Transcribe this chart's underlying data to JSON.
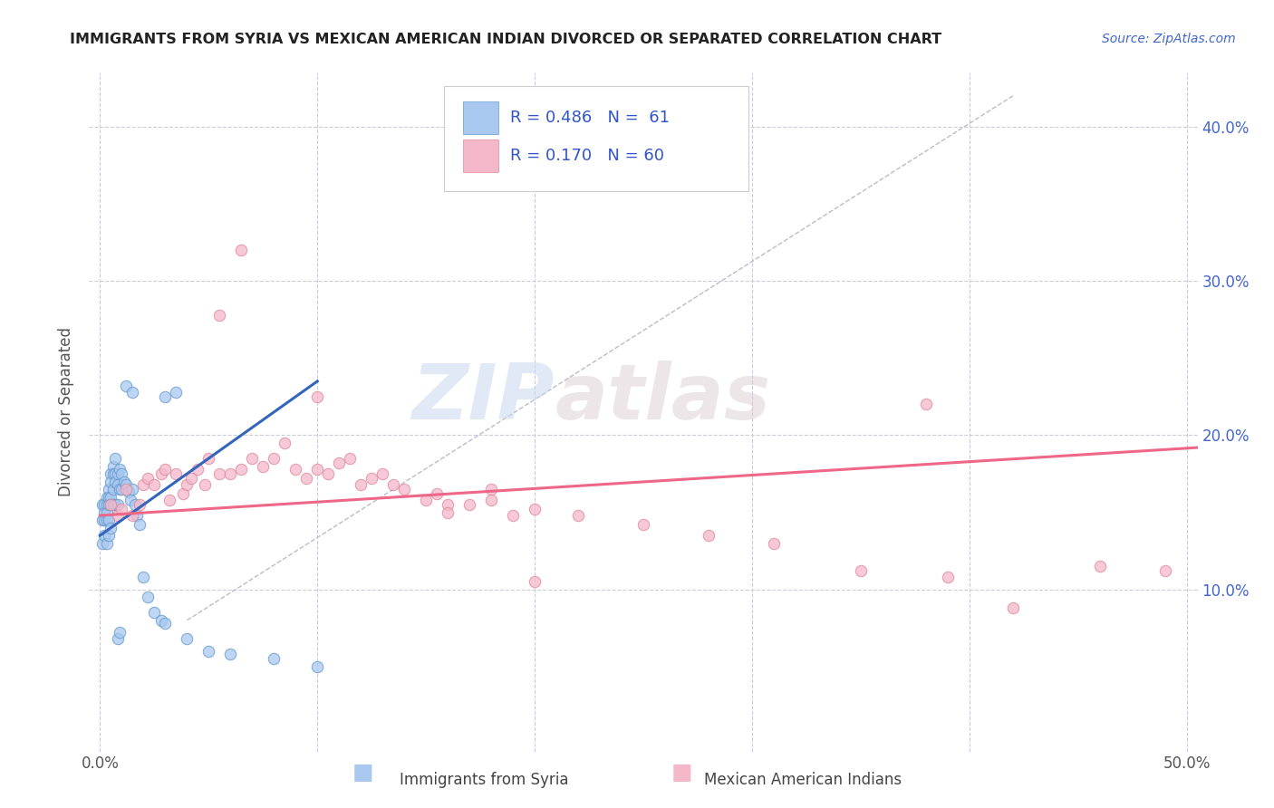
{
  "title": "IMMIGRANTS FROM SYRIA VS MEXICAN AMERICAN INDIAN DIVORCED OR SEPARATED CORRELATION CHART",
  "source": "Source: ZipAtlas.com",
  "ylabel": "Divorced or Separated",
  "watermark_zip": "ZIP",
  "watermark_atlas": "atlas",
  "xlim": [
    -0.005,
    0.505
  ],
  "ylim": [
    -0.005,
    0.435
  ],
  "x_ticks": [
    0.0,
    0.1,
    0.2,
    0.3,
    0.4,
    0.5
  ],
  "x_tick_labels": [
    "0.0%",
    "",
    "",
    "",
    "",
    "50.0%"
  ],
  "y_ticks_right": [
    0.1,
    0.2,
    0.3,
    0.4
  ],
  "y_tick_labels_right": [
    "10.0%",
    "20.0%",
    "30.0%",
    "40.0%"
  ],
  "legend_r1": "R = 0.486",
  "legend_n1": "N =  61",
  "legend_r2": "R = 0.170",
  "legend_n2": "N = 60",
  "legend_label1": "Immigrants from Syria",
  "legend_label2": "Mexican American Indians",
  "color_blue": "#a8c8f0",
  "color_blue_edge": "#6699cc",
  "color_pink": "#f5b8cb",
  "color_pink_edge": "#e08898",
  "color_blue_line": "#3366bb",
  "color_pink_line": "#ee6688",
  "color_legend_text": "#3355cc",
  "color_right_axis": "#4466cc",
  "background_color": "#ffffff",
  "grid_color": "#ccccdd",
  "blue_scatter_x": [
    0.001,
    0.001,
    0.001,
    0.002,
    0.002,
    0.002,
    0.002,
    0.003,
    0.003,
    0.003,
    0.003,
    0.003,
    0.004,
    0.004,
    0.004,
    0.004,
    0.004,
    0.005,
    0.005,
    0.005,
    0.005,
    0.005,
    0.006,
    0.006,
    0.006,
    0.006,
    0.007,
    0.007,
    0.007,
    0.007,
    0.008,
    0.008,
    0.008,
    0.009,
    0.009,
    0.01,
    0.01,
    0.011,
    0.012,
    0.013,
    0.014,
    0.015,
    0.016,
    0.017,
    0.018,
    0.02,
    0.022,
    0.025,
    0.028,
    0.03,
    0.04,
    0.05,
    0.06,
    0.08,
    0.1,
    0.03,
    0.035,
    0.012,
    0.015,
    0.008,
    0.009
  ],
  "blue_scatter_y": [
    0.155,
    0.145,
    0.13,
    0.155,
    0.15,
    0.145,
    0.135,
    0.16,
    0.155,
    0.15,
    0.145,
    0.13,
    0.165,
    0.16,
    0.155,
    0.145,
    0.135,
    0.175,
    0.17,
    0.16,
    0.155,
    0.14,
    0.18,
    0.175,
    0.165,
    0.155,
    0.185,
    0.175,
    0.17,
    0.155,
    0.175,
    0.168,
    0.155,
    0.178,
    0.165,
    0.175,
    0.165,
    0.17,
    0.168,
    0.163,
    0.158,
    0.165,
    0.155,
    0.148,
    0.142,
    0.108,
    0.095,
    0.085,
    0.08,
    0.078,
    0.068,
    0.06,
    0.058,
    0.055,
    0.05,
    0.225,
    0.228,
    0.232,
    0.228,
    0.068,
    0.072
  ],
  "pink_scatter_x": [
    0.005,
    0.008,
    0.01,
    0.012,
    0.015,
    0.018,
    0.02,
    0.022,
    0.025,
    0.028,
    0.03,
    0.032,
    0.035,
    0.038,
    0.04,
    0.042,
    0.045,
    0.048,
    0.05,
    0.055,
    0.06,
    0.065,
    0.07,
    0.075,
    0.08,
    0.085,
    0.09,
    0.095,
    0.1,
    0.105,
    0.11,
    0.115,
    0.12,
    0.125,
    0.13,
    0.14,
    0.15,
    0.16,
    0.17,
    0.18,
    0.19,
    0.2,
    0.22,
    0.25,
    0.28,
    0.31,
    0.35,
    0.39,
    0.42,
    0.46,
    0.49,
    0.055,
    0.065,
    0.1,
    0.135,
    0.155,
    0.16,
    0.18,
    0.2,
    0.38
  ],
  "pink_scatter_y": [
    0.155,
    0.148,
    0.152,
    0.165,
    0.148,
    0.155,
    0.168,
    0.172,
    0.168,
    0.175,
    0.178,
    0.158,
    0.175,
    0.162,
    0.168,
    0.172,
    0.178,
    0.168,
    0.185,
    0.175,
    0.175,
    0.178,
    0.185,
    0.18,
    0.185,
    0.195,
    0.178,
    0.172,
    0.178,
    0.175,
    0.182,
    0.185,
    0.168,
    0.172,
    0.175,
    0.165,
    0.158,
    0.155,
    0.155,
    0.165,
    0.148,
    0.152,
    0.148,
    0.142,
    0.135,
    0.13,
    0.112,
    0.108,
    0.088,
    0.115,
    0.112,
    0.278,
    0.32,
    0.225,
    0.168,
    0.162,
    0.15,
    0.158,
    0.105,
    0.22
  ],
  "blue_line_x": [
    0.0,
    0.1
  ],
  "blue_line_y": [
    0.135,
    0.235
  ],
  "pink_line_x": [
    0.0,
    0.505
  ],
  "pink_line_y": [
    0.148,
    0.192
  ],
  "diag_line_x": [
    0.04,
    0.42
  ],
  "diag_line_y": [
    0.08,
    0.42
  ]
}
